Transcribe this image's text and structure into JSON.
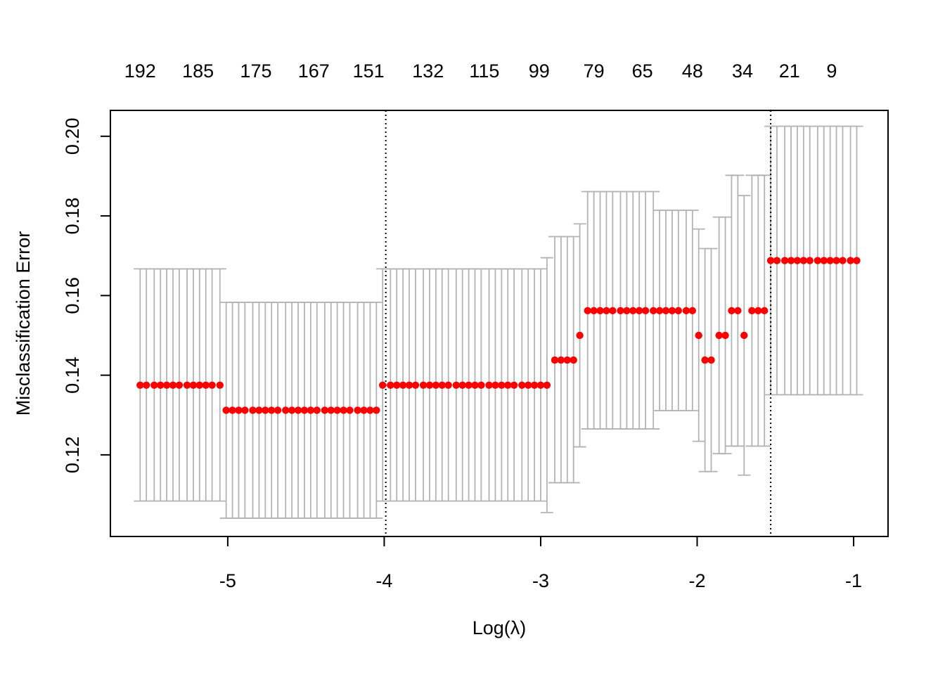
{
  "chart_data": {
    "type": "scatter",
    "xlabel": "Log(λ)",
    "ylabel": "Misclassification Error",
    "xlim": [
      -5.75,
      -0.78
    ],
    "ylim": [
      0.0995,
      0.2065
    ],
    "x_ticks": [
      -5,
      -4,
      -3,
      -2,
      -1
    ],
    "x_tick_labels": [
      "-5",
      "-4",
      "-3",
      "-2",
      "-1"
    ],
    "y_ticks": [
      0.12,
      0.14,
      0.16,
      0.18,
      0.2
    ],
    "y_tick_labels": [
      "0.12",
      "0.14",
      "0.16",
      "0.18",
      "0.20"
    ],
    "top_axis": {
      "positions": [
        -5.56,
        -5.19,
        -4.82,
        -4.45,
        -4.1,
        -3.72,
        -3.36,
        -3.01,
        -2.66,
        -2.35,
        -2.03,
        -1.71,
        -1.41,
        -1.14
      ],
      "labels": [
        "192",
        "185",
        "175",
        "167",
        "151",
        "132",
        "115",
        "99",
        "79",
        "65",
        "48",
        "34",
        "21",
        "9"
      ]
    },
    "vlines": [
      -3.99,
      -1.53
    ],
    "point_color": "#ff0000",
    "errorbar_color": "#b3b3b3",
    "grid": false,
    "series": [
      {
        "x": [
          -5.56,
          -5.52,
          -5.47,
          -5.43,
          -5.39,
          -5.35,
          -5.31,
          -5.26,
          -5.22,
          -5.18,
          -5.14,
          -5.1,
          -5.05,
          -5.01,
          -4.97,
          -4.93,
          -4.89,
          -4.84,
          -4.8,
          -4.76,
          -4.72,
          -4.68,
          -4.63,
          -4.59,
          -4.55,
          -4.51,
          -4.47,
          -4.43,
          -4.38,
          -4.34,
          -4.3,
          -4.26,
          -4.22,
          -4.17,
          -4.13,
          -4.09,
          -4.05,
          -4.01,
          -3.96,
          -3.92,
          -3.88,
          -3.84,
          -3.8,
          -3.75,
          -3.71,
          -3.67,
          -3.63,
          -3.59,
          -3.54,
          -3.5,
          -3.46,
          -3.42,
          -3.38,
          -3.33,
          -3.29,
          -3.25,
          -3.21,
          -3.17,
          -3.12,
          -3.08,
          -3.04,
          -3.0,
          -2.96,
          -2.91,
          -2.87,
          -2.83,
          -2.79,
          -2.75,
          -2.7,
          -2.66,
          -2.62,
          -2.58,
          -2.54,
          -2.49,
          -2.45,
          -2.41,
          -2.37,
          -2.33,
          -2.28,
          -2.24,
          -2.2,
          -2.16,
          -2.12,
          -2.07,
          -2.03,
          -1.99,
          -1.95,
          -1.91,
          -1.86,
          -1.82,
          -1.78,
          -1.74,
          -1.7,
          -1.65,
          -1.61,
          -1.57,
          -1.53,
          -1.49,
          -1.44,
          -1.4,
          -1.36,
          -1.32,
          -1.28,
          -1.23,
          -1.19,
          -1.15,
          -1.11,
          -1.07,
          -1.02,
          -0.98
        ],
        "y": [
          0.1375,
          0.1375,
          0.1375,
          0.1375,
          0.1375,
          0.1375,
          0.1375,
          0.1375,
          0.1375,
          0.1375,
          0.1375,
          0.1375,
          0.1375,
          0.1312,
          0.1312,
          0.1312,
          0.1312,
          0.1312,
          0.1312,
          0.1312,
          0.1312,
          0.1312,
          0.1312,
          0.1312,
          0.1312,
          0.1312,
          0.1312,
          0.1312,
          0.1312,
          0.1312,
          0.1312,
          0.1312,
          0.1312,
          0.1312,
          0.1312,
          0.1312,
          0.1312,
          0.1375,
          0.1375,
          0.1375,
          0.1375,
          0.1375,
          0.1375,
          0.1375,
          0.1375,
          0.1375,
          0.1375,
          0.1375,
          0.1375,
          0.1375,
          0.1375,
          0.1375,
          0.1375,
          0.1375,
          0.1375,
          0.1375,
          0.1375,
          0.1375,
          0.1375,
          0.1375,
          0.1375,
          0.1375,
          0.1375,
          0.1438,
          0.1438,
          0.1438,
          0.1438,
          0.15,
          0.1562,
          0.1562,
          0.1562,
          0.1562,
          0.1562,
          0.1562,
          0.1562,
          0.1562,
          0.1562,
          0.1562,
          0.1562,
          0.1562,
          0.1562,
          0.1562,
          0.1562,
          0.1562,
          0.1562,
          0.15,
          0.1438,
          0.1438,
          0.15,
          0.15,
          0.1562,
          0.1562,
          0.15,
          0.1562,
          0.1562,
          0.1562,
          0.1688,
          0.1688,
          0.1688,
          0.1688,
          0.1688,
          0.1688,
          0.1688,
          0.1688,
          0.1688,
          0.1688,
          0.1688,
          0.1688,
          0.1688,
          0.1688
        ],
        "ylo": [
          0.1084,
          0.1084,
          0.1084,
          0.1084,
          0.1084,
          0.1084,
          0.1084,
          0.1084,
          0.1084,
          0.1084,
          0.1084,
          0.1084,
          0.1084,
          0.1041,
          0.1041,
          0.1041,
          0.1041,
          0.1041,
          0.1041,
          0.1041,
          0.1041,
          0.1041,
          0.1041,
          0.1041,
          0.1041,
          0.1041,
          0.1041,
          0.1041,
          0.1041,
          0.1041,
          0.1041,
          0.1041,
          0.1041,
          0.1041,
          0.1041,
          0.1041,
          0.1041,
          0.1084,
          0.1084,
          0.1084,
          0.1084,
          0.1084,
          0.1084,
          0.1084,
          0.1084,
          0.1084,
          0.1084,
          0.1084,
          0.1084,
          0.1084,
          0.1084,
          0.1084,
          0.1084,
          0.1084,
          0.1084,
          0.1084,
          0.1084,
          0.1084,
          0.1084,
          0.1084,
          0.1084,
          0.1084,
          0.1055,
          0.113,
          0.113,
          0.113,
          0.113,
          0.122,
          0.1265,
          0.1265,
          0.1265,
          0.1265,
          0.1265,
          0.1265,
          0.1265,
          0.1265,
          0.1265,
          0.1265,
          0.1265,
          0.1311,
          0.1311,
          0.1311,
          0.1311,
          0.1311,
          0.1311,
          0.1234,
          0.1158,
          0.1158,
          0.1203,
          0.1203,
          0.1222,
          0.1222,
          0.1149,
          0.1222,
          0.1222,
          0.1222,
          0.1351,
          0.1351,
          0.1351,
          0.1351,
          0.1351,
          0.1351,
          0.1351,
          0.1351,
          0.1351,
          0.1351,
          0.1351,
          0.1351,
          0.1351,
          0.1351
        ],
        "yhi": [
          0.1667,
          0.1667,
          0.1667,
          0.1667,
          0.1667,
          0.1667,
          0.1667,
          0.1667,
          0.1667,
          0.1667,
          0.1667,
          0.1667,
          0.1667,
          0.1583,
          0.1583,
          0.1583,
          0.1583,
          0.1583,
          0.1583,
          0.1583,
          0.1583,
          0.1583,
          0.1583,
          0.1583,
          0.1583,
          0.1583,
          0.1583,
          0.1583,
          0.1583,
          0.1583,
          0.1583,
          0.1583,
          0.1583,
          0.1583,
          0.1583,
          0.1583,
          0.1583,
          0.1667,
          0.1667,
          0.1667,
          0.1667,
          0.1667,
          0.1667,
          0.1667,
          0.1667,
          0.1667,
          0.1667,
          0.1667,
          0.1667,
          0.1667,
          0.1667,
          0.1667,
          0.1667,
          0.1667,
          0.1667,
          0.1667,
          0.1667,
          0.1667,
          0.1667,
          0.1667,
          0.1667,
          0.1667,
          0.1695,
          0.1748,
          0.1748,
          0.1748,
          0.1748,
          0.178,
          0.1861,
          0.1861,
          0.1861,
          0.1861,
          0.1861,
          0.1861,
          0.1861,
          0.1861,
          0.1861,
          0.1861,
          0.1861,
          0.1814,
          0.1814,
          0.1814,
          0.1814,
          0.1814,
          0.1814,
          0.1767,
          0.1718,
          0.1718,
          0.1797,
          0.1797,
          0.1902,
          0.1902,
          0.1851,
          0.1902,
          0.1902,
          0.1902,
          0.2025,
          0.2025,
          0.2025,
          0.2025,
          0.2025,
          0.2025,
          0.2025,
          0.2025,
          0.2025,
          0.2025,
          0.2025,
          0.2025,
          0.2025,
          0.2025
        ]
      }
    ]
  }
}
